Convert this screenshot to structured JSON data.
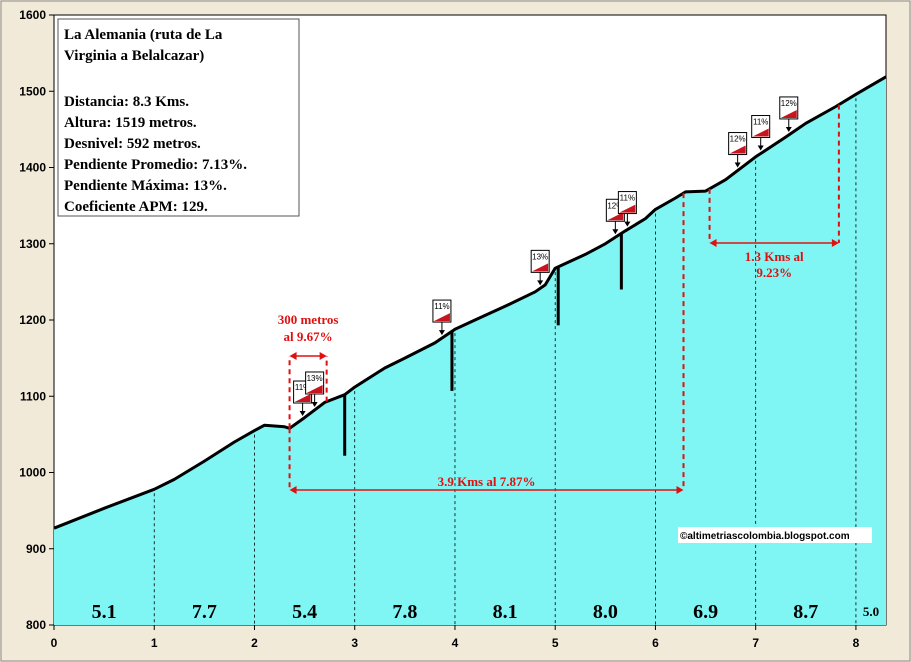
{
  "chart_data": {
    "type": "area",
    "xlim": [
      0,
      8.3
    ],
    "ylim": [
      800,
      1600
    ],
    "x_ticks": [
      "0",
      "1",
      "2",
      "3",
      "4",
      "5",
      "6",
      "7",
      "8"
    ],
    "y_ticks": [
      "800",
      "900",
      "1000",
      "1100",
      "1200",
      "1300",
      "1400",
      "1500",
      "1600"
    ],
    "x": [
      0,
      0.5,
      1,
      1.2,
      1.5,
      1.8,
      2,
      2.1,
      2.3,
      2.35,
      2.5,
      2.7,
      2.9,
      3.0,
      3.3,
      3.5,
      3.8,
      4.0,
      4.2,
      4.5,
      4.8,
      4.9,
      5.0,
      5.1,
      5.3,
      5.5,
      5.7,
      5.9,
      6.0,
      6.2,
      6.3,
      6.5,
      6.7,
      7.0,
      7.3,
      7.5,
      7.8,
      8.0,
      8.3
    ],
    "y": [
      927,
      953,
      978,
      991,
      1015,
      1040,
      1055,
      1062,
      1060,
      1058,
      1072,
      1092,
      1102,
      1112,
      1137,
      1150,
      1170,
      1188,
      1200,
      1218,
      1237,
      1246,
      1268,
      1274,
      1286,
      1300,
      1317,
      1333,
      1345,
      1360,
      1368,
      1369,
      1384,
      1414,
      1440,
      1458,
      1480,
      1496,
      1519
    ],
    "segments": [
      {
        "label": "5.1",
        "x": 0.5
      },
      {
        "label": "7.7",
        "x": 1.5
      },
      {
        "label": "5.4",
        "x": 2.5
      },
      {
        "label": "7.8",
        "x": 3.5
      },
      {
        "label": "8.1",
        "x": 4.5
      },
      {
        "label": "8.0",
        "x": 5.5
      },
      {
        "label": "6.9",
        "x": 6.5
      },
      {
        "label": "8.7",
        "x": 7.5
      },
      {
        "label": "5.0",
        "x": 8.15
      }
    ],
    "gradient_badges": [
      {
        "label": "11%",
        "x": 2.48
      },
      {
        "label": "13%",
        "x": 2.6
      },
      {
        "label": "11%",
        "x": 3.87
      },
      {
        "label": "13%",
        "x": 4.85
      },
      {
        "label": "12%",
        "x": 5.6
      },
      {
        "label": "11%",
        "x": 5.72
      },
      {
        "label": "12%",
        "x": 6.82
      },
      {
        "label": "11%",
        "x": 7.05
      },
      {
        "label": "12%",
        "x": 7.33
      }
    ],
    "spikes": [
      {
        "x": 2.9,
        "bottom": 1022
      },
      {
        "x": 3.97,
        "bottom": 1107
      },
      {
        "x": 5.03,
        "bottom": 1193
      },
      {
        "x": 5.66,
        "bottom": 1240
      }
    ],
    "annotations": {
      "short": {
        "line1": "300 metros",
        "line2": "al 9.67%",
        "x1": 2.35,
        "x2": 2.72
      },
      "mid": {
        "label": "3.9 Kms al 7.87%",
        "x1": 2.35,
        "x2": 6.28
      },
      "long": {
        "line1": "1.3 Kms al",
        "line2": "9.23%",
        "x1": 6.54,
        "x2": 7.83
      }
    },
    "grid": false
  },
  "info_box": {
    "title_line1": "La Alemania (ruta de La",
    "title_line2": "Virginia a Belalcazar)",
    "lines": [
      "Distancia: 8.3 Kms.",
      "Altura:  1519 metros.",
      "Desnivel: 592 metros.",
      "Pendiente Promedio: 7.13%.",
      "Pendiente Máxima: 13%.",
      "Coeficiente APM: 129."
    ]
  },
  "credit": "©altimetriascolombia.blogspot.com",
  "colors": {
    "fill": "#7ff6f4",
    "background": "#ffffff",
    "page": "#f2ead9",
    "annotation": "#e01010",
    "badge_red": "#c8141e",
    "line": "#000000"
  }
}
